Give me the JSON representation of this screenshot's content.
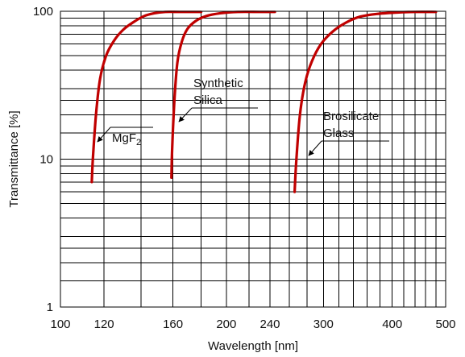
{
  "chart_data": {
    "type": "line",
    "title": "",
    "xlabel": "Wavelength [nm]",
    "ylabel": "Transmittance [%]",
    "x_scale": "log",
    "y_scale": "log",
    "xlim": [
      100,
      500
    ],
    "ylim": [
      1,
      100
    ],
    "x_ticks": [
      100,
      120,
      160,
      200,
      240,
      300,
      400,
      500
    ],
    "x_tick_labels": [
      "100",
      "120",
      "160",
      "200",
      "240",
      "300",
      "400",
      "500"
    ],
    "y_ticks": [
      1,
      10,
      100
    ],
    "y_tick_labels": [
      "1",
      "10",
      "100"
    ],
    "grid": true,
    "legend": "none",
    "curve_color": "#c00000",
    "series": [
      {
        "annotation": "MgF₂",
        "x": [
          114,
          114.5,
          116,
          118,
          121,
          125,
          130,
          136,
          142,
          148,
          155,
          165,
          180
        ],
        "y": [
          7,
          10,
          20,
          35,
          50,
          63,
          75,
          85,
          93,
          97,
          99,
          99,
          99
        ]
      },
      {
        "annotation": "Synthetic Silica",
        "x": [
          159,
          159.5,
          161,
          163,
          166,
          170,
          176,
          184,
          195,
          210,
          230,
          245
        ],
        "y": [
          7.5,
          12,
          25,
          45,
          62,
          76,
          86,
          93,
          97,
          99,
          99,
          99
        ]
      },
      {
        "annotation": "Brosilicate Glass",
        "x": [
          266,
          268,
          272,
          278,
          286,
          297,
          312,
          330,
          350,
          375,
          405,
          440,
          480
        ],
        "y": [
          6,
          10,
          20,
          33,
          46,
          60,
          73,
          84,
          92,
          96,
          98,
          99,
          99
        ]
      }
    ]
  }
}
